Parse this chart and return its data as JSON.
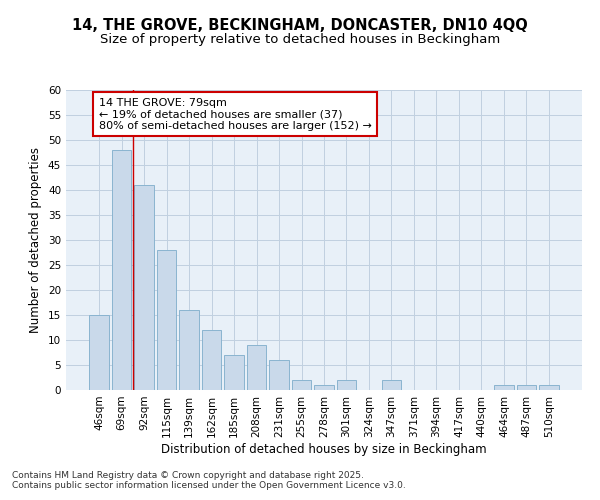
{
  "title_line1": "14, THE GROVE, BECKINGHAM, DONCASTER, DN10 4QQ",
  "title_line2": "Size of property relative to detached houses in Beckingham",
  "xlabel": "Distribution of detached houses by size in Beckingham",
  "ylabel": "Number of detached properties",
  "categories": [
    "46sqm",
    "69sqm",
    "92sqm",
    "115sqm",
    "139sqm",
    "162sqm",
    "185sqm",
    "208sqm",
    "231sqm",
    "255sqm",
    "278sqm",
    "301sqm",
    "324sqm",
    "347sqm",
    "371sqm",
    "394sqm",
    "417sqm",
    "440sqm",
    "464sqm",
    "487sqm",
    "510sqm"
  ],
  "values": [
    15,
    48,
    41,
    28,
    16,
    12,
    7,
    9,
    6,
    2,
    1,
    2,
    0,
    2,
    0,
    0,
    0,
    0,
    1,
    1,
    1
  ],
  "bar_color": "#c9d9ea",
  "bar_edge_color": "#8ab4d0",
  "grid_color": "#c0d0e0",
  "background_color": "#e8f0f8",
  "vline_x": 1.5,
  "vline_color": "#cc0000",
  "annotation_text": "14 THE GROVE: 79sqm\n← 19% of detached houses are smaller (37)\n80% of semi-detached houses are larger (152) →",
  "annotation_box_color": "#ffffff",
  "annotation_edge_color": "#cc0000",
  "ylim": [
    0,
    60
  ],
  "yticks": [
    0,
    5,
    10,
    15,
    20,
    25,
    30,
    35,
    40,
    45,
    50,
    55,
    60
  ],
  "footer": "Contains HM Land Registry data © Crown copyright and database right 2025.\nContains public sector information licensed under the Open Government Licence v3.0.",
  "title_fontsize": 10.5,
  "subtitle_fontsize": 9.5,
  "axis_label_fontsize": 8.5,
  "tick_fontsize": 7.5,
  "annotation_fontsize": 8,
  "footer_fontsize": 6.5
}
